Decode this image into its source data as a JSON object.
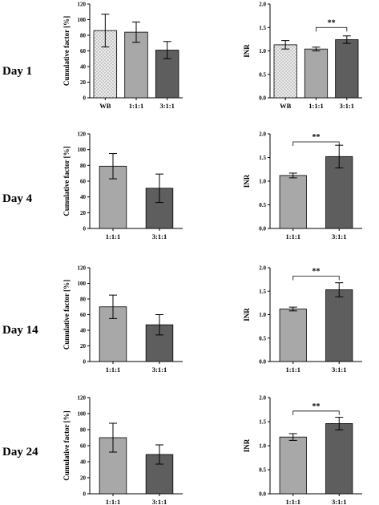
{
  "row_labels": [
    "Day 1",
    "Day 4",
    "Day 14",
    "Day 24"
  ],
  "colors": {
    "wb": "#e6e6e6",
    "ratio_111": "#a8a8a8",
    "ratio_311": "#5e5e5e",
    "line": "#000000"
  },
  "chart_data": [
    {
      "type": "bar",
      "row": 0,
      "col": 0,
      "ylabel": "Cumulative factor [%]",
      "ylim": [
        0,
        120
      ],
      "yticks": [
        "0",
        "20",
        "40",
        "60",
        "80",
        "100",
        "120"
      ],
      "categories": [
        "WB",
        "1:1:1",
        "3:1:1"
      ],
      "values": [
        86,
        84,
        61
      ],
      "errors": [
        21,
        13,
        11
      ],
      "fills": [
        "wb",
        "ratio_111",
        "ratio_311"
      ],
      "pattern": [
        "dots",
        "",
        ""
      ],
      "significance": []
    },
    {
      "type": "bar",
      "row": 0,
      "col": 1,
      "ylabel": "INR",
      "ylim": [
        0,
        2
      ],
      "yticks": [
        "0.0",
        "0.5",
        "1.0",
        "1.5",
        "2.0"
      ],
      "categories": [
        "WB",
        "1:1:1",
        "3:1:1"
      ],
      "values": [
        1.13,
        1.04,
        1.24
      ],
      "errors": [
        0.09,
        0.04,
        0.08
      ],
      "fills": [
        "wb",
        "ratio_111",
        "ratio_311"
      ],
      "pattern": [
        "dots",
        "",
        ""
      ],
      "significance": [
        {
          "from": 1,
          "to": 2,
          "label": "**",
          "y": 1.5
        }
      ]
    },
    {
      "type": "bar",
      "row": 1,
      "col": 0,
      "ylabel": "Cumulative factor [%]",
      "ylim": [
        0,
        120
      ],
      "yticks": [
        "0",
        "20",
        "40",
        "60",
        "80",
        "100",
        "120"
      ],
      "categories": [
        "1:1:1",
        "3:1:1"
      ],
      "values": [
        79,
        51
      ],
      "errors": [
        16,
        18
      ],
      "fills": [
        "ratio_111",
        "ratio_311"
      ],
      "pattern": [
        "",
        ""
      ],
      "significance": []
    },
    {
      "type": "bar",
      "row": 1,
      "col": 1,
      "ylabel": "INR",
      "ylim": [
        0,
        2
      ],
      "yticks": [
        "0.0",
        "0.5",
        "1.0",
        "1.5",
        "2.0"
      ],
      "categories": [
        "1:1:1",
        "3:1:1"
      ],
      "values": [
        1.12,
        1.52
      ],
      "errors": [
        0.05,
        0.24
      ],
      "fills": [
        "ratio_111",
        "ratio_311"
      ],
      "pattern": [
        "",
        ""
      ],
      "significance": [
        {
          "from": 0,
          "to": 1,
          "label": "**",
          "y": 1.83
        }
      ]
    },
    {
      "type": "bar",
      "row": 2,
      "col": 0,
      "ylabel": "Cumulative factor [%]",
      "ylim": [
        0,
        120
      ],
      "yticks": [
        "0",
        "20",
        "40",
        "60",
        "80",
        "100",
        "120"
      ],
      "categories": [
        "1:1:1",
        "3:1:1"
      ],
      "values": [
        70,
        47
      ],
      "errors": [
        15,
        13
      ],
      "fills": [
        "ratio_111",
        "ratio_311"
      ],
      "pattern": [
        "",
        ""
      ],
      "significance": []
    },
    {
      "type": "bar",
      "row": 2,
      "col": 1,
      "ylabel": "INR",
      "ylim": [
        0,
        2
      ],
      "yticks": [
        "0.0",
        "0.5",
        "1.0",
        "1.5",
        "2.0"
      ],
      "categories": [
        "1:1:1",
        "3:1:1"
      ],
      "values": [
        1.12,
        1.53
      ],
      "errors": [
        0.04,
        0.15
      ],
      "fills": [
        "ratio_111",
        "ratio_311"
      ],
      "pattern": [
        "",
        ""
      ],
      "significance": [
        {
          "from": 0,
          "to": 1,
          "label": "**",
          "y": 1.82
        }
      ]
    },
    {
      "type": "bar",
      "row": 3,
      "col": 0,
      "ylabel": "Cumulative factor [%]",
      "ylim": [
        0,
        120
      ],
      "yticks": [
        "0",
        "20",
        "40",
        "60",
        "80",
        "100",
        "120"
      ],
      "categories": [
        "1:1:1",
        "3:1:1"
      ],
      "values": [
        70,
        49
      ],
      "errors": [
        18,
        12
      ],
      "fills": [
        "ratio_111",
        "ratio_311"
      ],
      "pattern": [
        "",
        ""
      ],
      "significance": []
    },
    {
      "type": "bar",
      "row": 3,
      "col": 1,
      "ylabel": "INR",
      "ylim": [
        0,
        2
      ],
      "yticks": [
        "0.0",
        "0.5",
        "1.0",
        "1.5",
        "2.0"
      ],
      "categories": [
        "1:1:1",
        "3:1:1"
      ],
      "values": [
        1.18,
        1.46
      ],
      "errors": [
        0.07,
        0.13
      ],
      "fills": [
        "ratio_111",
        "ratio_311"
      ],
      "pattern": [
        "",
        ""
      ],
      "significance": [
        {
          "from": 0,
          "to": 1,
          "label": "**",
          "y": 1.72
        }
      ]
    }
  ]
}
